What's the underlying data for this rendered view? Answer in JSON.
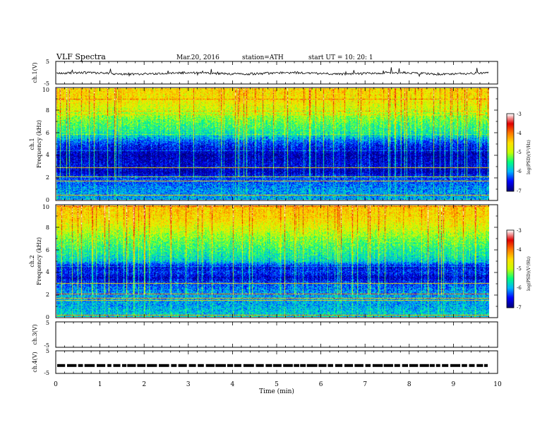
{
  "header": {
    "title": "VLF  Spectra",
    "date": "Mar.20, 2016",
    "station": "station=ATH",
    "start": "start  UT  =    10: 20: 1"
  },
  "chart_data": [
    {
      "type": "line",
      "panel": "ch1-waveform",
      "ylabel": "ch.1(V)",
      "xlim": [
        0,
        10
      ],
      "ylim": [
        -5,
        5
      ],
      "yticks": [
        "5",
        "-5"
      ],
      "baseline": -0.3,
      "color": "#000000"
    },
    {
      "type": "heatmap",
      "panel": "ch1-spectrogram",
      "ylabel": "ch.1\nFrequency  (kHz)",
      "xlim": [
        0,
        9.83
      ],
      "ylim": [
        0,
        10
      ],
      "yticks": [
        "0",
        "2",
        "4",
        "6",
        "8",
        "10"
      ],
      "profile_khz": [
        0,
        1,
        2,
        2.5,
        3,
        4,
        5,
        5.5,
        6,
        7,
        8,
        9,
        10
      ],
      "profile_logpsd": [
        -6.0,
        -6.1,
        -6.4,
        -6.8,
        -6.6,
        -6.8,
        -6.4,
        -6.0,
        -5.6,
        -5.3,
        -4.9,
        -4.6,
        -4.5
      ],
      "colorbar": {
        "label": "log(PSD)(V²/Hz)",
        "range": [
          -7,
          -3
        ],
        "ticks": [
          "-3",
          "-4",
          "-5",
          "-6",
          "-7"
        ]
      }
    },
    {
      "type": "heatmap",
      "panel": "ch2-spectrogram",
      "ylabel": "ch.2\nFrequency  (kHz)",
      "xlim": [
        0,
        9.83
      ],
      "ylim": [
        0,
        10
      ],
      "yticks": [
        "0",
        "2",
        "4",
        "6",
        "8",
        "10"
      ],
      "profile_khz": [
        0,
        1,
        2,
        3,
        3.5,
        4,
        4.5,
        5,
        6,
        7,
        8,
        9,
        10
      ],
      "profile_logpsd": [
        -5.8,
        -6.0,
        -6.0,
        -6.3,
        -6.7,
        -6.4,
        -6.6,
        -5.8,
        -5.5,
        -5.2,
        -4.8,
        -4.5,
        -4.4
      ],
      "colorbar": {
        "label": "log(PSD)(V²/Hz)",
        "range": [
          -7,
          -3
        ],
        "ticks": [
          "-3",
          "-4",
          "-5",
          "-6",
          "-7"
        ]
      }
    },
    {
      "type": "line",
      "panel": "ch3-waveform",
      "ylabel": "ch.3(V)",
      "xlim": [
        0,
        10
      ],
      "ylim": [
        -5,
        5
      ],
      "yticks": [
        "5",
        "-5"
      ]
    },
    {
      "type": "line",
      "panel": "ch4-waveform",
      "ylabel": "ch.4(V)",
      "xlim": [
        0,
        10
      ],
      "ylim": [
        -5,
        5
      ],
      "yticks": [
        "5",
        "-5"
      ],
      "baseline": -1.5,
      "color": "#000000"
    }
  ],
  "x_axis": {
    "label": "Time  (min)",
    "ticks": [
      "0",
      "1",
      "2",
      "3",
      "4",
      "5",
      "6",
      "7",
      "8",
      "9",
      "10"
    ]
  },
  "labels": {
    "ch1_voltage": "ch.1(V)",
    "ch1_freq_a": "ch.1",
    "ch1_freq_b": "Frequency  (kHz)",
    "ch2_freq_a": "ch.2",
    "ch2_freq_b": "Frequency  (kHz)",
    "ch3_voltage": "ch.3(V)",
    "ch4_voltage": "ch.4(V)",
    "colorbar_label": "log(PSD)(V²/Hz)"
  },
  "colors": {
    "colormap": [
      "#00007a",
      "#0000ff",
      "#00b4ff",
      "#00ff80",
      "#c8ff00",
      "#ffe000",
      "#ff7a00",
      "#e00000",
      "#ffffff"
    ]
  }
}
